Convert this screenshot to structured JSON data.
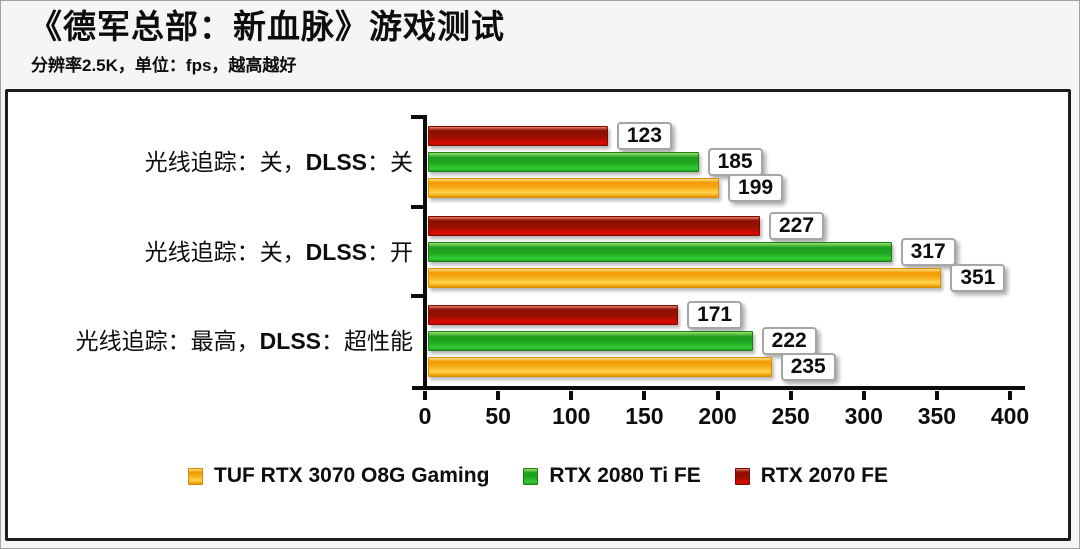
{
  "header": {
    "title": "《德军总部：新血脉》游戏测试",
    "subtitle": "分辨率2.5K，单位：fps，越高越好",
    "subtitle_parts": [
      {
        "text": "分辨率",
        "latin_bold": false
      },
      {
        "text": "2.5K",
        "latin_bold": true
      },
      {
        "text": "，单位：",
        "latin_bold": false
      },
      {
        "text": "fps",
        "latin_bold": true
      },
      {
        "text": "，越高越好",
        "latin_bold": false
      }
    ]
  },
  "chart_data": {
    "type": "bar",
    "orientation": "horizontal",
    "title": "《德军总部：新血脉》游戏测试",
    "subtitle": "分辨率2.5K，单位：fps，越高越好",
    "unit": "fps",
    "higher_is_better": true,
    "categories": [
      "光线追踪：关，DLSS：关",
      "光线追踪：关，DLSS：开",
      "光线追踪：最高，DLSS：超性能"
    ],
    "series": [
      {
        "name": "TUF RTX 3070 O8G Gaming",
        "color": "#F6A800",
        "values": [
          199,
          351,
          235
        ]
      },
      {
        "name": "RTX 2080 Ti FE",
        "color": "#25B825",
        "values": [
          185,
          317,
          222
        ]
      },
      {
        "name": "RTX 2070 FE",
        "color": "#C81400",
        "values": [
          123,
          227,
          171
        ]
      }
    ],
    "bar_order_top_to_bottom": [
      "RTX 2070 FE",
      "RTX 2080 Ti FE",
      "TUF RTX 3070 O8G Gaming"
    ],
    "xlim": [
      0,
      400
    ],
    "xticks": [
      0,
      50,
      100,
      150,
      200,
      250,
      300,
      350,
      400
    ],
    "grid": false,
    "value_labels": true,
    "legend_position": "bottom"
  }
}
